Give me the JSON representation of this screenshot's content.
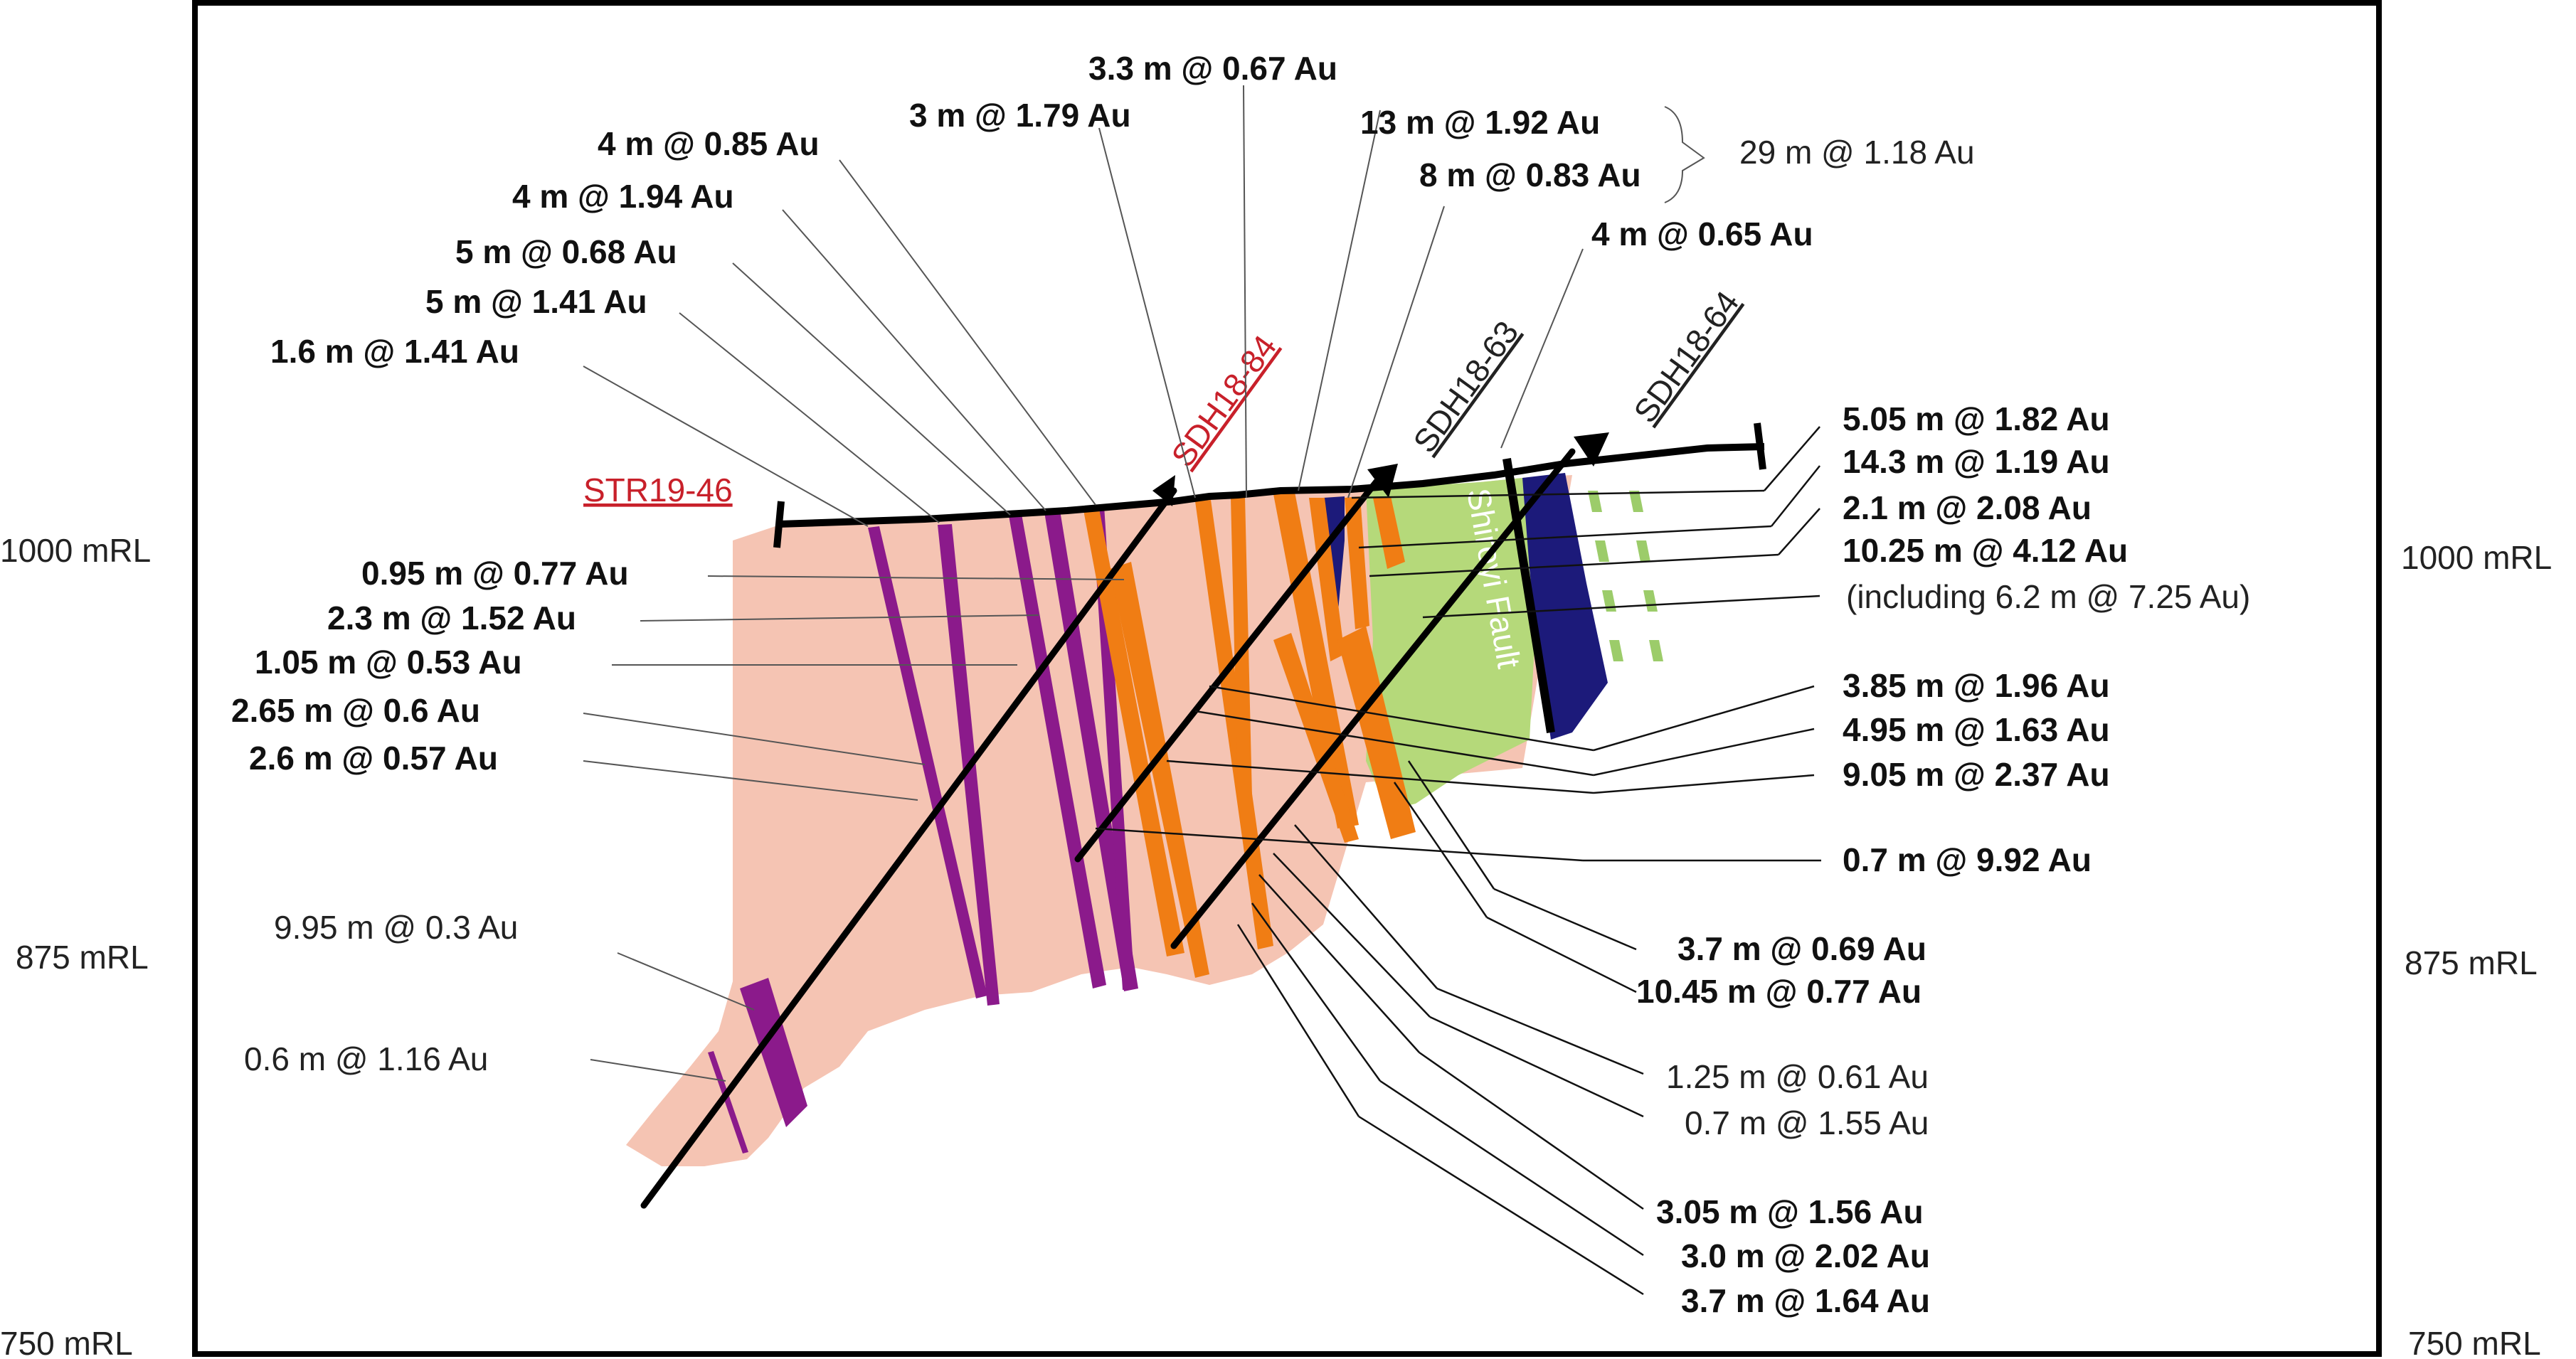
{
  "section": {
    "elevation_labels": {
      "left_1000": "1000 mRL",
      "left_875": "875 mRL",
      "left_750": "750 mRL",
      "right_1000": "1000 mRL",
      "right_875": "875 mRL",
      "right_750": "750 mRL"
    },
    "fault_label": "Shiroyi Fault",
    "drillholes": {
      "str19_46": "STR19-46",
      "sdh18_84": "SDH18-84",
      "sdh18_63": "SDH18-63",
      "sdh18_64": "SDH18-64"
    },
    "intercepts": {
      "i01": "3.3 m @ 0.67 Au",
      "i02": "3 m @ 1.79 Au",
      "i03": "4 m @ 0.85 Au",
      "i04": "4 m @ 1.94 Au",
      "i05": "5 m @ 0.68 Au",
      "i06": "5 m @ 1.41 Au",
      "i07": "1.6 m @ 1.41 Au",
      "i08": "13 m @ 1.92 Au",
      "i09": "8 m @ 0.83 Au",
      "i10": "29 m @ 1.18 Au",
      "i11": "4 m @ 0.65 Au",
      "i12": "5.05 m @ 1.82 Au",
      "i13": "14.3 m @ 1.19 Au",
      "i14": "2.1 m @ 2.08 Au",
      "i15": "10.25 m @ 4.12 Au",
      "i16": "(including 6.2 m @ 7.25 Au)",
      "i17": "0.95 m @ 0.77 Au",
      "i18": "2.3 m @ 1.52 Au",
      "i19": "1.05 m @ 0.53 Au",
      "i20": "2.65 m @ 0.6 Au",
      "i21": "2.6 m @ 0.57 Au",
      "i22": "3.85 m @ 1.96 Au",
      "i23": "4.95 m @ 1.63 Au",
      "i24": "9.05 m @ 2.37 Au",
      "i25": "0.7 m @ 9.92 Au",
      "i26": "3.7 m @ 0.69 Au",
      "i27": "10.45 m @ 0.77 Au",
      "i28": "9.95 m @ 0.3 Au",
      "i29": "0.6 m @ 1.16 Au",
      "i30": "1.25 m @ 0.61 Au",
      "i31": "0.7 m @ 1.55 Au",
      "i32": "3.05 m @ 1.56 Au",
      "i33": "3.0 m @ 2.02 Au",
      "i34": "3.7 m @ 1.64 Au"
    }
  },
  "colors": {
    "host_rock": "#f5c4b3",
    "purple_vein": "#8b1a8b",
    "orange_vein": "#f07d14",
    "green_zone": "#b5d97a",
    "blue_unit": "#1c1a7a",
    "green_dashes": "#9ccc6a",
    "frame": "#000000",
    "red_label": "#c8202a"
  }
}
